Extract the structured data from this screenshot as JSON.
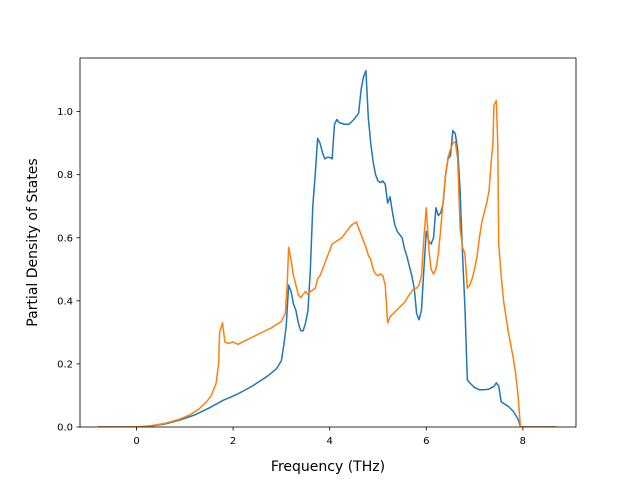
{
  "chart_data": {
    "type": "line",
    "title": "",
    "xlabel": "Frequency (THz)",
    "ylabel": "Partial Density of States",
    "xlim": [
      -1.17,
      9.1
    ],
    "ylim": [
      0.0,
      1.17
    ],
    "x_ticks": [
      0,
      2,
      4,
      6,
      8
    ],
    "y_ticks": [
      0.0,
      0.2,
      0.4,
      0.6,
      0.8,
      1.0
    ],
    "x_tick_labels": [
      "0",
      "2",
      "4",
      "6",
      "8"
    ],
    "y_tick_labels": [
      "0.0",
      "0.2",
      "0.4",
      "0.6",
      "0.8",
      "1.0"
    ],
    "grid": false,
    "legend": "none",
    "series": [
      {
        "color": "#1f77b4",
        "points": [
          [
            -0.8,
            0.0
          ],
          [
            0.0,
            0.0
          ],
          [
            0.3,
            0.003
          ],
          [
            0.6,
            0.01
          ],
          [
            0.9,
            0.022
          ],
          [
            1.2,
            0.038
          ],
          [
            1.5,
            0.06
          ],
          [
            1.8,
            0.085
          ],
          [
            2.1,
            0.105
          ],
          [
            2.4,
            0.13
          ],
          [
            2.7,
            0.16
          ],
          [
            2.9,
            0.185
          ],
          [
            3.0,
            0.21
          ],
          [
            3.05,
            0.26
          ],
          [
            3.1,
            0.32
          ],
          [
            3.15,
            0.45
          ],
          [
            3.2,
            0.43
          ],
          [
            3.25,
            0.39
          ],
          [
            3.3,
            0.37
          ],
          [
            3.35,
            0.33
          ],
          [
            3.4,
            0.305
          ],
          [
            3.45,
            0.305
          ],
          [
            3.5,
            0.33
          ],
          [
            3.55,
            0.37
          ],
          [
            3.6,
            0.5
          ],
          [
            3.65,
            0.7
          ],
          [
            3.7,
            0.8
          ],
          [
            3.75,
            0.915
          ],
          [
            3.8,
            0.9
          ],
          [
            3.85,
            0.87
          ],
          [
            3.9,
            0.85
          ],
          [
            3.95,
            0.855
          ],
          [
            4.0,
            0.855
          ],
          [
            4.05,
            0.85
          ],
          [
            4.1,
            0.96
          ],
          [
            4.15,
            0.975
          ],
          [
            4.2,
            0.965
          ],
          [
            4.3,
            0.96
          ],
          [
            4.4,
            0.96
          ],
          [
            4.5,
            0.975
          ],
          [
            4.55,
            0.985
          ],
          [
            4.6,
            0.995
          ],
          [
            4.65,
            1.07
          ],
          [
            4.7,
            1.11
          ],
          [
            4.75,
            1.13
          ],
          [
            4.8,
            0.98
          ],
          [
            4.85,
            0.9
          ],
          [
            4.9,
            0.84
          ],
          [
            4.95,
            0.8
          ],
          [
            5.0,
            0.78
          ],
          [
            5.05,
            0.775
          ],
          [
            5.1,
            0.78
          ],
          [
            5.15,
            0.77
          ],
          [
            5.2,
            0.71
          ],
          [
            5.25,
            0.73
          ],
          [
            5.3,
            0.68
          ],
          [
            5.35,
            0.64
          ],
          [
            5.4,
            0.62
          ],
          [
            5.5,
            0.6
          ],
          [
            5.55,
            0.565
          ],
          [
            5.6,
            0.54
          ],
          [
            5.65,
            0.51
          ],
          [
            5.7,
            0.48
          ],
          [
            5.75,
            0.44
          ],
          [
            5.8,
            0.36
          ],
          [
            5.85,
            0.34
          ],
          [
            5.9,
            0.37
          ],
          [
            5.95,
            0.5
          ],
          [
            6.0,
            0.62
          ],
          [
            6.05,
            0.59
          ],
          [
            6.1,
            0.58
          ],
          [
            6.15,
            0.6
          ],
          [
            6.2,
            0.695
          ],
          [
            6.25,
            0.67
          ],
          [
            6.3,
            0.68
          ],
          [
            6.35,
            0.71
          ],
          [
            6.4,
            0.8
          ],
          [
            6.45,
            0.85
          ],
          [
            6.5,
            0.86
          ],
          [
            6.55,
            0.94
          ],
          [
            6.6,
            0.93
          ],
          [
            6.65,
            0.88
          ],
          [
            6.7,
            0.75
          ],
          [
            6.75,
            0.55
          ],
          [
            6.8,
            0.38
          ],
          [
            6.85,
            0.15
          ],
          [
            6.9,
            0.14
          ],
          [
            7.0,
            0.125
          ],
          [
            7.1,
            0.118
          ],
          [
            7.2,
            0.118
          ],
          [
            7.3,
            0.12
          ],
          [
            7.35,
            0.125
          ],
          [
            7.4,
            0.128
          ],
          [
            7.45,
            0.14
          ],
          [
            7.5,
            0.13
          ],
          [
            7.55,
            0.08
          ],
          [
            7.6,
            0.075
          ],
          [
            7.7,
            0.065
          ],
          [
            7.8,
            0.05
          ],
          [
            7.9,
            0.025
          ],
          [
            7.95,
            0.0
          ],
          [
            8.7,
            0.0
          ]
        ]
      },
      {
        "color": "#ff7f0e",
        "points": [
          [
            -0.8,
            0.0
          ],
          [
            0.0,
            0.0
          ],
          [
            0.3,
            0.004
          ],
          [
            0.6,
            0.012
          ],
          [
            0.9,
            0.025
          ],
          [
            1.1,
            0.038
          ],
          [
            1.3,
            0.058
          ],
          [
            1.45,
            0.08
          ],
          [
            1.55,
            0.1
          ],
          [
            1.65,
            0.14
          ],
          [
            1.7,
            0.2
          ],
          [
            1.72,
            0.3
          ],
          [
            1.78,
            0.33
          ],
          [
            1.83,
            0.27
          ],
          [
            1.9,
            0.265
          ],
          [
            2.0,
            0.27
          ],
          [
            2.1,
            0.262
          ],
          [
            2.2,
            0.27
          ],
          [
            2.4,
            0.285
          ],
          [
            2.6,
            0.3
          ],
          [
            2.8,
            0.315
          ],
          [
            3.0,
            0.335
          ],
          [
            3.08,
            0.36
          ],
          [
            3.12,
            0.45
          ],
          [
            3.15,
            0.57
          ],
          [
            3.2,
            0.53
          ],
          [
            3.25,
            0.48
          ],
          [
            3.3,
            0.45
          ],
          [
            3.35,
            0.42
          ],
          [
            3.4,
            0.41
          ],
          [
            3.45,
            0.42
          ],
          [
            3.5,
            0.43
          ],
          [
            3.55,
            0.42
          ],
          [
            3.6,
            0.43
          ],
          [
            3.7,
            0.44
          ],
          [
            3.75,
            0.47
          ],
          [
            3.8,
            0.48
          ],
          [
            3.85,
            0.5
          ],
          [
            3.9,
            0.52
          ],
          [
            3.95,
            0.54
          ],
          [
            4.0,
            0.56
          ],
          [
            4.05,
            0.58
          ],
          [
            4.15,
            0.59
          ],
          [
            4.25,
            0.6
          ],
          [
            4.35,
            0.62
          ],
          [
            4.45,
            0.64
          ],
          [
            4.55,
            0.65
          ],
          [
            4.6,
            0.63
          ],
          [
            4.65,
            0.61
          ],
          [
            4.7,
            0.59
          ],
          [
            4.75,
            0.57
          ],
          [
            4.8,
            0.545
          ],
          [
            4.85,
            0.53
          ],
          [
            4.9,
            0.5
          ],
          [
            4.95,
            0.485
          ],
          [
            5.0,
            0.48
          ],
          [
            5.05,
            0.485
          ],
          [
            5.1,
            0.48
          ],
          [
            5.15,
            0.45
          ],
          [
            5.2,
            0.33
          ],
          [
            5.25,
            0.35
          ],
          [
            5.35,
            0.365
          ],
          [
            5.45,
            0.38
          ],
          [
            5.55,
            0.395
          ],
          [
            5.65,
            0.42
          ],
          [
            5.75,
            0.44
          ],
          [
            5.8,
            0.44
          ],
          [
            5.85,
            0.45
          ],
          [
            5.9,
            0.48
          ],
          [
            5.95,
            0.6
          ],
          [
            6.0,
            0.695
          ],
          [
            6.05,
            0.57
          ],
          [
            6.1,
            0.5
          ],
          [
            6.15,
            0.485
          ],
          [
            6.2,
            0.5
          ],
          [
            6.25,
            0.55
          ],
          [
            6.3,
            0.63
          ],
          [
            6.35,
            0.72
          ],
          [
            6.4,
            0.8
          ],
          [
            6.45,
            0.855
          ],
          [
            6.5,
            0.88
          ],
          [
            6.55,
            0.9
          ],
          [
            6.6,
            0.905
          ],
          [
            6.65,
            0.85
          ],
          [
            6.7,
            0.63
          ],
          [
            6.75,
            0.57
          ],
          [
            6.8,
            0.55
          ],
          [
            6.85,
            0.44
          ],
          [
            6.9,
            0.45
          ],
          [
            6.95,
            0.47
          ],
          [
            7.0,
            0.5
          ],
          [
            7.05,
            0.54
          ],
          [
            7.1,
            0.6
          ],
          [
            7.15,
            0.65
          ],
          [
            7.2,
            0.68
          ],
          [
            7.25,
            0.71
          ],
          [
            7.3,
            0.75
          ],
          [
            7.35,
            0.85
          ],
          [
            7.38,
            0.9
          ],
          [
            7.4,
            1.02
          ],
          [
            7.45,
            1.035
          ],
          [
            7.48,
            0.9
          ],
          [
            7.5,
            0.58
          ],
          [
            7.55,
            0.48
          ],
          [
            7.6,
            0.4
          ],
          [
            7.7,
            0.3
          ],
          [
            7.8,
            0.22
          ],
          [
            7.85,
            0.17
          ],
          [
            7.9,
            0.1
          ],
          [
            7.95,
            0.0
          ],
          [
            8.7,
            0.0
          ]
        ]
      }
    ]
  }
}
